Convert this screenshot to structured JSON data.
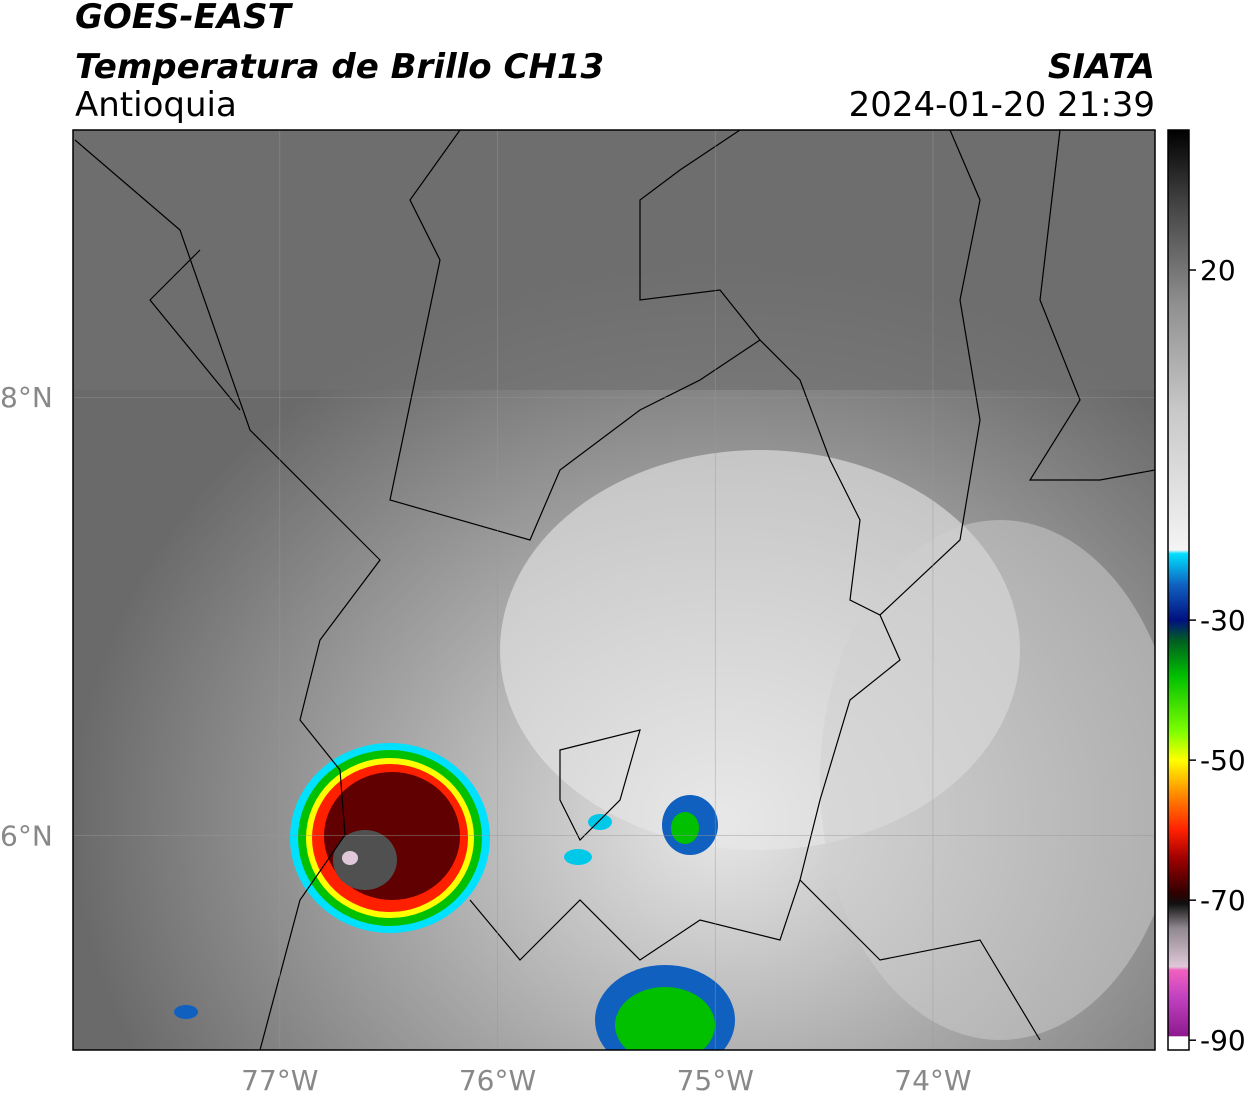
{
  "header": {
    "title": "GOES-EAST",
    "subtitle": "Temperatura de Brillo CH13",
    "region": "Antioquia",
    "source": "SIATA",
    "timestamp": "2024-01-20 21:39"
  },
  "map": {
    "xlim": [
      -77.95,
      -72.98
    ],
    "ylim": [
      5.02,
      9.22
    ],
    "xticks": [
      {
        "value": -77,
        "label": "77°W"
      },
      {
        "value": -76,
        "label": "76°W"
      },
      {
        "value": -75,
        "label": "75°W"
      },
      {
        "value": -74,
        "label": "74°W"
      }
    ],
    "yticks": [
      {
        "value": 8,
        "label": "8°N"
      },
      {
        "value": 6,
        "label": "6°N"
      }
    ],
    "grid": true
  },
  "colorbar": {
    "lim": [
      -91.4,
      40
    ],
    "ticks": [
      20,
      -30,
      -50,
      -70,
      -90
    ],
    "colormap": [
      [
        -91.4,
        "#ffffff"
      ],
      [
        -89.5,
        "#ffffff"
      ],
      [
        -89.4,
        "#8e1a8e"
      ],
      [
        -84,
        "#c040c0"
      ],
      [
        -80,
        "#f060c0"
      ],
      [
        -79.5,
        "#e0c8d8"
      ],
      [
        -74,
        "#908890"
      ],
      [
        -70.5,
        "#101010"
      ],
      [
        -69,
        "#300000"
      ],
      [
        -64,
        "#a00000"
      ],
      [
        -60,
        "#ff2000"
      ],
      [
        -55,
        "#ff8800"
      ],
      [
        -50,
        "#ffff00"
      ],
      [
        -46,
        "#80ff00"
      ],
      [
        -38,
        "#00c000"
      ],
      [
        -33,
        "#006020"
      ],
      [
        -30,
        "#001080"
      ],
      [
        -25,
        "#1060c0"
      ],
      [
        -20.5,
        "#00e0ff"
      ],
      [
        -20,
        "#f4f4f4"
      ],
      [
        0,
        "#c8c8c8"
      ],
      [
        15,
        "#909090"
      ],
      [
        30,
        "#404040"
      ],
      [
        40,
        "#000000"
      ]
    ]
  }
}
